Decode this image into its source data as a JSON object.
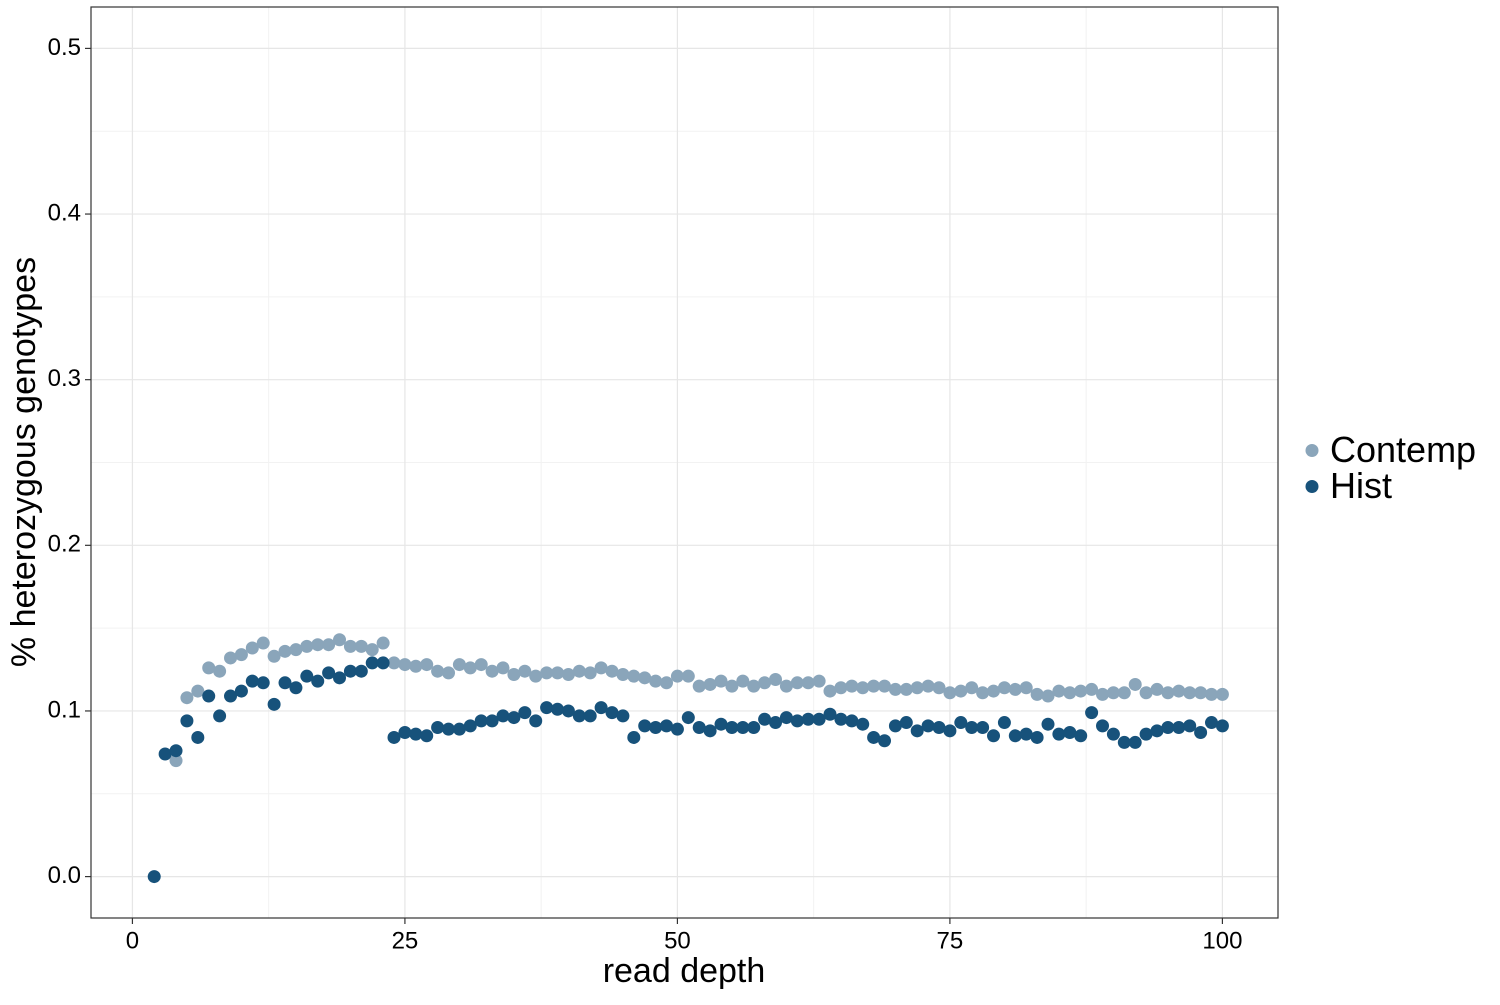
{
  "chart_data": {
    "type": "scatter",
    "x_label": "read depth",
    "y_label": "% heterozygous genotypes",
    "x": [
      2,
      3,
      4,
      5,
      6,
      7,
      8,
      9,
      10,
      11,
      12,
      13,
      14,
      15,
      16,
      17,
      18,
      19,
      20,
      21,
      22,
      23,
      24,
      25,
      26,
      27,
      28,
      29,
      30,
      31,
      32,
      33,
      34,
      35,
      36,
      37,
      38,
      39,
      40,
      41,
      42,
      43,
      44,
      45,
      46,
      47,
      48,
      49,
      50,
      51,
      52,
      53,
      54,
      55,
      56,
      57,
      58,
      59,
      60,
      61,
      62,
      63,
      64,
      65,
      66,
      67,
      68,
      69,
      70,
      71,
      72,
      73,
      74,
      75,
      76,
      77,
      78,
      79,
      80,
      81,
      82,
      83,
      84,
      85,
      86,
      87,
      88,
      89,
      90,
      91,
      92,
      93,
      94,
      95,
      96,
      97,
      98,
      99,
      100
    ],
    "series": [
      {
        "name": "Contemp",
        "color": "#8aa5ba",
        "values": [
          null,
          null,
          0.07,
          0.108,
          0.112,
          0.126,
          0.124,
          0.132,
          0.134,
          0.138,
          0.141,
          0.133,
          0.136,
          0.137,
          0.139,
          0.14,
          0.14,
          0.143,
          0.139,
          0.139,
          0.137,
          0.141,
          0.129,
          0.128,
          0.127,
          0.128,
          0.124,
          0.123,
          0.128,
          0.126,
          0.128,
          0.124,
          0.126,
          0.122,
          0.124,
          0.121,
          0.123,
          0.123,
          0.122,
          0.124,
          0.123,
          0.126,
          0.124,
          0.122,
          0.121,
          0.12,
          0.118,
          0.117,
          0.121,
          0.121,
          0.115,
          0.116,
          0.118,
          0.115,
          0.118,
          0.115,
          0.117,
          0.119,
          0.115,
          0.117,
          0.117,
          0.118,
          0.112,
          0.114,
          0.115,
          0.114,
          0.115,
          0.115,
          0.113,
          0.113,
          0.114,
          0.115,
          0.114,
          0.111,
          0.112,
          0.114,
          0.111,
          0.112,
          0.114,
          0.113,
          0.114,
          0.11,
          0.109,
          0.112,
          0.111,
          0.112,
          0.113,
          0.11,
          0.111,
          0.111,
          0.116,
          0.111,
          0.113,
          0.111,
          0.112,
          0.111,
          0.111,
          0.11,
          0.11
        ]
      },
      {
        "name": "Hist",
        "color": "#17527b",
        "values": [
          0.0,
          0.074,
          0.076,
          0.094,
          0.084,
          0.109,
          0.097,
          0.109,
          0.112,
          0.118,
          0.117,
          0.104,
          0.117,
          0.114,
          0.121,
          0.118,
          0.123,
          0.12,
          0.124,
          0.124,
          0.129,
          0.129,
          0.084,
          0.087,
          0.086,
          0.085,
          0.09,
          0.089,
          0.089,
          0.091,
          0.094,
          0.094,
          0.097,
          0.096,
          0.099,
          0.094,
          0.102,
          0.101,
          0.1,
          0.097,
          0.097,
          0.102,
          0.099,
          0.097,
          0.084,
          0.091,
          0.09,
          0.091,
          0.089,
          0.096,
          0.09,
          0.088,
          0.092,
          0.09,
          0.09,
          0.09,
          0.095,
          0.093,
          0.096,
          0.094,
          0.095,
          0.095,
          0.098,
          0.095,
          0.094,
          0.092,
          0.084,
          0.082,
          0.091,
          0.093,
          0.088,
          0.091,
          0.09,
          0.088,
          0.093,
          0.09,
          0.09,
          0.085,
          0.093,
          0.085,
          0.086,
          0.084,
          0.092,
          0.086,
          0.087,
          0.085,
          0.099,
          0.091,
          0.086,
          0.081,
          0.081,
          0.086,
          0.088,
          0.09,
          0.09,
          0.091,
          0.087,
          0.093,
          0.091
        ]
      }
    ],
    "xlim": [
      -3.8,
      105.1
    ],
    "ylim": [
      -0.025,
      0.525
    ],
    "xticks": [
      0,
      25,
      50,
      75,
      100
    ],
    "yticks": [
      {
        "value": 0,
        "label": "0.0"
      },
      0.1,
      0.2,
      0.3,
      0.4,
      0.5
    ],
    "grid": true,
    "minor_grid": true,
    "legend": "right"
  }
}
